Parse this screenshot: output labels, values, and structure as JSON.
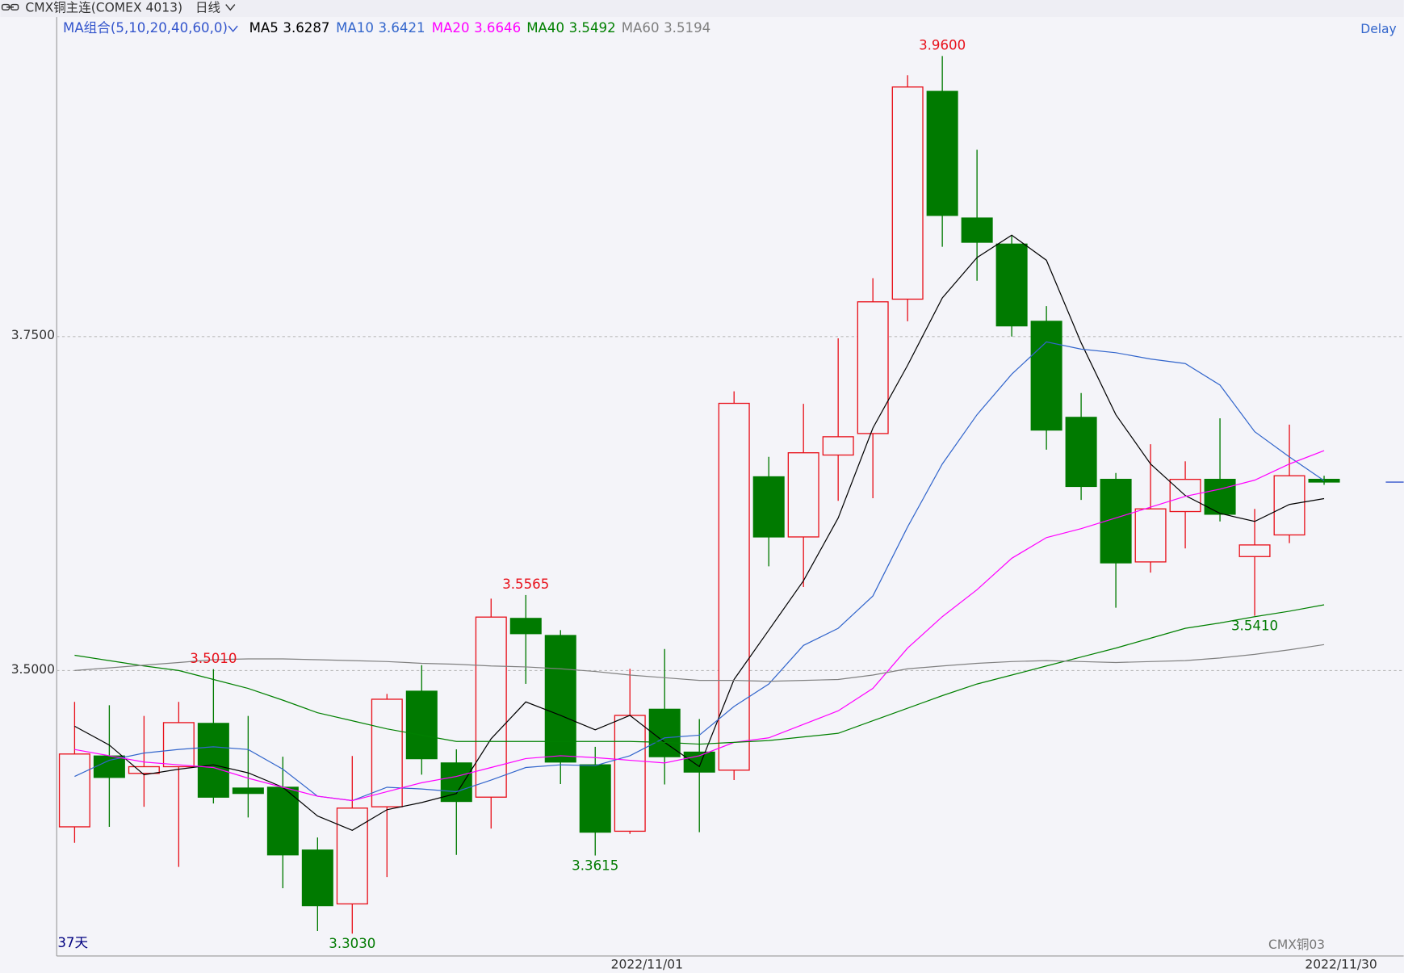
{
  "chart_data": {
    "type": "candlestick",
    "title": "CMX铜主连(COMEX 4013)",
    "period": "日线",
    "indicator": "MA组合(5,10,20,40,60,0)",
    "status": "Delay",
    "day_count": "37天",
    "watermark": "CMX铜03",
    "up_color": "#e8121c",
    "down_color": "#007a00",
    "ylim": [
      3.2863,
      3.9892
    ],
    "yticks": [
      {
        "value": 3.75,
        "label": "3.7500"
      },
      {
        "value": 3.5,
        "label": "3.5000"
      }
    ],
    "grid": true,
    "categories": [
      null,
      null,
      null,
      null,
      null,
      null,
      null,
      null,
      null,
      null,
      null,
      null,
      null,
      null,
      null,
      null,
      "2022/11/01",
      null,
      null,
      null,
      null,
      null,
      null,
      null,
      null,
      null,
      null,
      null,
      null,
      null,
      null,
      null,
      null,
      null,
      null,
      null,
      "2022/11/30"
    ],
    "open": [
      3.383,
      3.436,
      3.423,
      3.428,
      3.4604,
      3.412,
      3.4126,
      3.3656,
      3.3253,
      3.398,
      3.4845,
      3.4308,
      3.4052,
      3.539,
      3.5262,
      3.4294,
      3.3797,
      3.471,
      3.4389,
      3.4254,
      3.645,
      3.6,
      3.6613,
      3.6774,
      3.778,
      3.9335,
      3.8387,
      3.8192,
      3.7614,
      3.6895,
      3.6431,
      3.5813,
      3.619,
      3.6431,
      3.5853,
      3.6015,
      3.6431
    ],
    "high": [
      3.4765,
      3.474,
      3.466,
      3.4765,
      3.501,
      3.466,
      3.4355,
      3.375,
      3.436,
      3.4825,
      3.504,
      3.441,
      3.5538,
      3.5565,
      3.5302,
      3.4429,
      3.5013,
      3.5161,
      3.4637,
      3.709,
      3.66,
      3.6996,
      3.7487,
      3.7937,
      3.9456,
      3.96,
      3.8898,
      3.8253,
      3.7728,
      3.7077,
      3.6479,
      3.6694,
      3.6566,
      3.6888,
      3.621,
      3.6841,
      3.6458
    ],
    "low": [
      3.371,
      3.383,
      3.398,
      3.353,
      3.4005,
      3.39,
      3.337,
      3.305,
      3.303,
      3.3454,
      3.422,
      3.362,
      3.3817,
      3.49,
      3.415,
      3.3615,
      3.3777,
      3.4147,
      3.379,
      3.418,
      3.578,
      3.5625,
      3.627,
      3.629,
      3.7614,
      3.8172,
      3.7917,
      3.75,
      3.6653,
      3.6277,
      3.547,
      3.5733,
      3.5914,
      3.6116,
      3.541,
      3.5954,
      3.639
    ],
    "close": [
      3.4375,
      3.42,
      3.428,
      3.461,
      3.4052,
      3.408,
      3.362,
      3.324,
      3.397,
      3.4785,
      3.434,
      3.402,
      3.54,
      3.5276,
      3.4315,
      3.379,
      3.4664,
      3.4355,
      3.424,
      3.7,
      3.6,
      3.663,
      3.675,
      3.776,
      3.9368,
      3.8407,
      3.8206,
      3.758,
      3.68,
      3.6378,
      3.5806,
      3.621,
      3.6431,
      3.617,
      3.594,
      3.6458,
      3.6411
    ],
    "series": [
      {
        "name": "MA5",
        "color": "#000000",
        "values": [
          3.4583,
          3.4442,
          3.422,
          3.4261,
          3.4294,
          3.4234,
          3.4126,
          3.3911,
          3.3804,
          3.3958,
          3.4012,
          3.4079,
          3.4489,
          3.4765,
          3.4664,
          3.4556,
          3.4664,
          3.4462,
          3.4281,
          3.4933,
          3.5302,
          3.5672,
          3.6142,
          3.6815,
          3.7285,
          3.7789,
          3.8091,
          3.8259,
          3.8071,
          3.7453,
          3.6915,
          3.6546,
          3.631,
          3.6176,
          3.6116,
          3.6243,
          3.6287
        ]
      },
      {
        "name": "MA10",
        "color": "#3366cc",
        "values": [
          3.4207,
          3.4328,
          3.4382,
          3.4409,
          3.4429,
          3.4409,
          3.4261,
          3.4059,
          3.4026,
          3.4126,
          3.4113,
          3.4093,
          3.418,
          3.4274,
          3.4294,
          3.4288,
          3.4362,
          3.4496,
          3.4516,
          3.4731,
          3.4899,
          3.5188,
          3.5316,
          3.5558,
          3.6075,
          3.6546,
          3.6915,
          3.7218,
          3.746,
          3.7406,
          3.7379,
          3.7332,
          3.7298,
          3.7137,
          3.6788,
          3.6599,
          3.6421
        ]
      },
      {
        "name": "MA20",
        "color": "#ff00ff",
        "values": [
          3.4409,
          3.4362,
          3.4315,
          3.4294,
          3.4274,
          3.4194,
          3.4126,
          3.4059,
          3.4026,
          3.4093,
          3.416,
          3.4207,
          3.4274,
          3.4341,
          3.4362,
          3.4348,
          3.4328,
          3.4308,
          3.4362,
          3.4462,
          3.4496,
          3.4597,
          3.4698,
          3.4866,
          3.5168,
          3.5403,
          3.5605,
          3.584,
          3.5995,
          3.6062,
          3.6142,
          3.6223,
          3.6304,
          3.6358,
          3.6425,
          3.6546,
          3.6646
        ]
      },
      {
        "name": "MA40",
        "color": "#008000",
        "values": [
          3.5114,
          3.5074,
          3.5034,
          3.5,
          3.4933,
          3.4866,
          3.4778,
          3.4684,
          3.4624,
          3.4563,
          3.4516,
          3.4469,
          3.4469,
          3.4469,
          3.4469,
          3.4469,
          3.4469,
          3.4462,
          3.4449,
          3.4462,
          3.4476,
          3.4503,
          3.453,
          3.4624,
          3.4718,
          3.4812,
          3.4899,
          3.4966,
          3.5034,
          3.5101,
          3.5168,
          3.5242,
          3.5316,
          3.5356,
          3.5403,
          3.5444,
          3.5492
        ]
      },
      {
        "name": "MA60",
        "color": "#808080",
        "values": [
          3.5,
          3.502,
          3.504,
          3.506,
          3.5081,
          3.5087,
          3.5087,
          3.5081,
          3.5074,
          3.5067,
          3.5054,
          3.5047,
          3.5034,
          3.5027,
          3.5013,
          3.4993,
          3.4966,
          3.4946,
          3.4926,
          3.4926,
          3.4919,
          3.4926,
          3.4933,
          3.4966,
          3.5013,
          3.5034,
          3.5054,
          3.5067,
          3.5074,
          3.5067,
          3.506,
          3.5067,
          3.5074,
          3.5094,
          3.5121,
          3.5155,
          3.5194
        ]
      }
    ],
    "annotations": [
      {
        "value": 3.501,
        "label": "3.5010"
      },
      {
        "value": 3.5565,
        "label": "3.5565"
      },
      {
        "value": 3.96,
        "label": "3.9600"
      },
      {
        "value": 3.303,
        "label": "3.3030"
      },
      {
        "value": 3.3615,
        "label": "3.3615"
      },
      {
        "value": 3.541,
        "label": "3.5410"
      }
    ]
  }
}
